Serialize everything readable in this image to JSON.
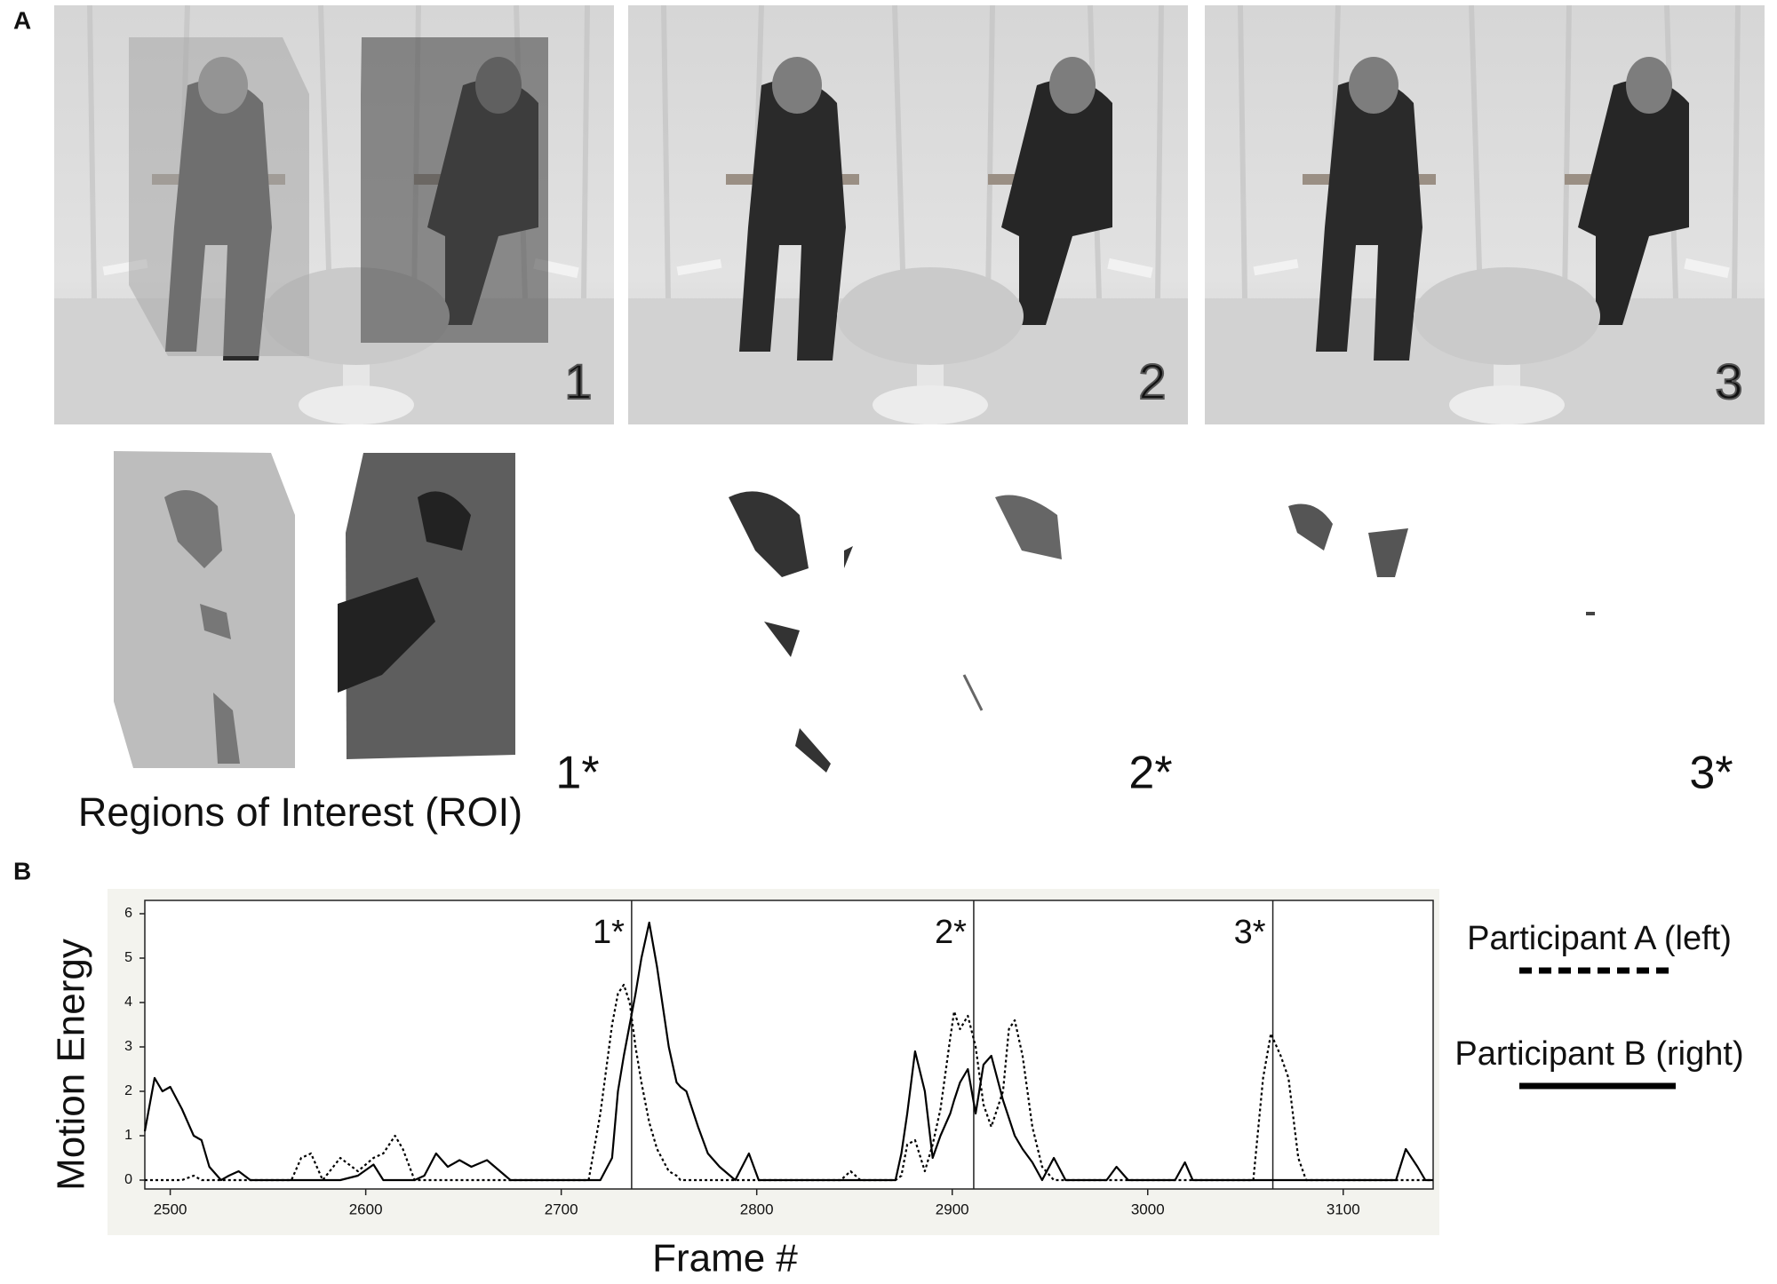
{
  "figure": {
    "panel_a": {
      "label": "A",
      "photos": [
        "1",
        "2",
        "3"
      ],
      "motion_frames": [
        "1*",
        "2*",
        "3*"
      ],
      "roi_caption": "Regions of Interest (ROI)"
    },
    "panel_b": {
      "label": "B"
    }
  },
  "chart_data": {
    "type": "line",
    "x_label": "Frame #",
    "y_label": "Motion Energy",
    "x": [
      2487,
      2492,
      2496,
      2500,
      2506,
      2512,
      2516,
      2520,
      2526,
      2530,
      2535,
      2541,
      2562,
      2567,
      2572,
      2578,
      2587,
      2596,
      2604,
      2609,
      2615,
      2619,
      2625,
      2630,
      2636,
      2642,
      2648,
      2654,
      2662,
      2674,
      2714,
      2720,
      2726,
      2729,
      2732,
      2735,
      2738,
      2741,
      2745,
      2749,
      2755,
      2759,
      2761,
      2764,
      2770,
      2775,
      2781,
      2789,
      2796,
      2801,
      2843,
      2848,
      2853,
      2871,
      2874,
      2877,
      2881,
      2886,
      2890,
      2894,
      2899,
      2901,
      2904,
      2908,
      2912,
      2916,
      2920,
      2926,
      2929,
      2932,
      2936,
      2941,
      2946,
      2952,
      2958,
      2979,
      2984,
      2990,
      3014,
      3019,
      3023,
      3054,
      3059,
      3063,
      3068,
      3072,
      3077,
      3081,
      3127,
      3132,
      3138,
      3142,
      3146
    ],
    "series": [
      {
        "name": "Participant A (left)",
        "color": "#000000",
        "style": "dotted",
        "values": [
          0,
          0,
          0,
          0,
          0,
          0.1,
          0,
          0,
          0,
          0,
          0,
          0,
          0,
          0.5,
          0.6,
          0,
          0.5,
          0.2,
          0.5,
          0.6,
          1.0,
          0.7,
          0,
          0,
          0,
          0,
          0,
          0,
          0,
          0,
          0,
          1.5,
          3.5,
          4.2,
          4.4,
          4.0,
          3.0,
          2.2,
          1.3,
          0.7,
          0.2,
          0.1,
          0,
          0,
          0,
          0,
          0,
          0,
          0,
          0,
          0,
          0.2,
          0,
          0,
          0.1,
          0.8,
          0.9,
          0.2,
          0.8,
          1.6,
          3.2,
          3.8,
          3.4,
          3.7,
          3.0,
          1.7,
          1.2,
          2.0,
          3.4,
          3.6,
          2.8,
          1.2,
          0.3,
          0,
          0,
          0,
          0,
          0,
          0,
          0,
          0,
          0,
          2.3,
          3.3,
          2.8,
          2.3,
          0.5,
          0,
          0,
          0,
          0,
          0,
          0
        ]
      },
      {
        "name": "Participant B (right)",
        "color": "#000000",
        "style": "solid",
        "values": [
          1.1,
          2.3,
          2.0,
          2.1,
          1.6,
          1.0,
          0.9,
          0.3,
          0,
          0.1,
          0.2,
          0,
          0,
          0,
          0,
          0,
          0,
          0.1,
          0.35,
          0,
          0,
          0,
          0,
          0.1,
          0.6,
          0.3,
          0.45,
          0.3,
          0.45,
          0,
          0,
          0,
          0.5,
          2.0,
          2.8,
          3.5,
          4.2,
          5.0,
          5.8,
          4.8,
          3.0,
          2.2,
          2.1,
          2.0,
          1.2,
          0.6,
          0.3,
          0,
          0.6,
          0,
          0,
          0,
          0,
          0,
          0.6,
          1.5,
          2.9,
          2.0,
          0.5,
          1.0,
          1.5,
          1.8,
          2.2,
          2.5,
          1.5,
          2.6,
          2.8,
          1.8,
          1.4,
          1.0,
          0.7,
          0.4,
          0,
          0.5,
          0,
          0,
          0.3,
          0,
          0,
          0.4,
          0,
          0,
          0,
          0,
          0,
          0,
          0,
          0,
          0,
          0.7,
          0.3,
          0,
          0
        ]
      }
    ],
    "annotations": [
      {
        "text": "1*",
        "x": 2736
      },
      {
        "text": "2*",
        "x": 2911
      },
      {
        "text": "3*",
        "x": 3064
      }
    ],
    "xlim": [
      2487,
      3146
    ],
    "ylim": [
      -0.2,
      6.3
    ],
    "xticks": [
      2500,
      2600,
      2700,
      2800,
      2900,
      3000,
      3100
    ],
    "yticks": [
      0,
      1,
      2,
      3,
      4,
      5,
      6
    ],
    "legend": "right"
  }
}
